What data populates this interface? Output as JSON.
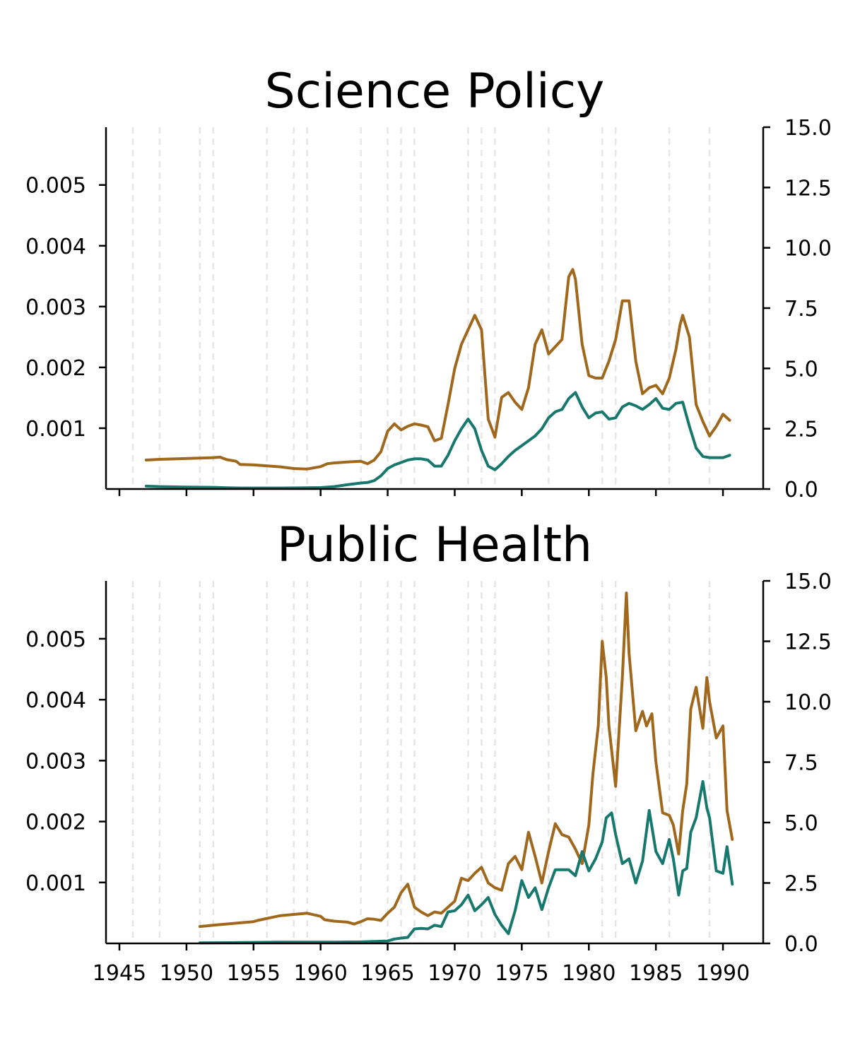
{
  "colors": {
    "brown": "#a0681c",
    "teal": "#17786e",
    "event_line": "#e6e6e6",
    "axis": "#000000"
  },
  "chart_data": [
    {
      "type": "line",
      "title": "Science Policy",
      "xlim": [
        1944,
        1993
      ],
      "x_ticks": [
        1945,
        1950,
        1955,
        1960,
        1965,
        1970,
        1975,
        1980,
        1985,
        1990
      ],
      "x_tick_labels_visible": false,
      "ylim_left": [
        0.0,
        0.00595
      ],
      "y_ticks_left": [
        "0.001",
        "0.002",
        "0.003",
        "0.004",
        "0.005"
      ],
      "ylim_right": [
        0.0,
        15.0
      ],
      "y_ticks_right": [
        "0.0",
        "2.5",
        "5.0",
        "7.5",
        "10.0",
        "12.5",
        "15.0"
      ],
      "event_lines": [
        1946,
        1948,
        1951,
        1952,
        1956,
        1958,
        1959,
        1963,
        1965,
        1966,
        1967,
        1971,
        1972,
        1973,
        1977,
        1981,
        1982,
        1986,
        1989
      ],
      "grid": false,
      "legend": "none",
      "series": [
        {
          "axis": "right",
          "color": "#a0681c",
          "x": [
            1947,
            1948,
            1952,
            1952.5,
            1953,
            1953.7,
            1954,
            1955,
            1957,
            1958,
            1959,
            1960,
            1960.5,
            1961,
            1962,
            1963,
            1963.5,
            1964,
            1964.5,
            1965,
            1965.5,
            1966,
            1966.5,
            1967,
            1967.5,
            1968,
            1968.5,
            1969,
            1969.5,
            1970,
            1970.5,
            1971,
            1971.5,
            1972,
            1972.5,
            1973,
            1973.5,
            1974,
            1974.5,
            1975,
            1975.5,
            1976,
            1976.5,
            1977,
            1977.5,
            1978,
            1978.5,
            1978.8,
            1979,
            1979.5,
            1980,
            1980.5,
            1981,
            1981.5,
            1982,
            1982.5,
            1983,
            1983.5,
            1984,
            1984.5,
            1985,
            1985.5,
            1986,
            1986.5,
            1986.8,
            1987,
            1987.5,
            1988,
            1988.5,
            1989,
            1989.5,
            1990,
            1990.5
          ],
          "y": [
            1.2,
            1.23,
            1.3,
            1.32,
            1.22,
            1.15,
            1.02,
            1.0,
            0.92,
            0.85,
            0.83,
            0.93,
            1.05,
            1.08,
            1.12,
            1.15,
            1.05,
            1.2,
            1.55,
            2.4,
            2.7,
            2.45,
            2.6,
            2.7,
            2.65,
            2.58,
            2.0,
            2.1,
            3.5,
            5.0,
            6.0,
            6.6,
            7.2,
            6.6,
            2.9,
            2.15,
            3.8,
            4.0,
            3.6,
            3.3,
            4.2,
            6.0,
            6.6,
            5.6,
            5.9,
            6.2,
            8.8,
            9.1,
            8.7,
            6.0,
            4.7,
            4.6,
            4.6,
            5.3,
            6.2,
            7.8,
            7.8,
            5.3,
            3.95,
            4.2,
            4.3,
            3.95,
            4.6,
            5.8,
            6.8,
            7.2,
            6.3,
            3.5,
            2.8,
            2.2,
            2.6,
            3.1,
            2.85
          ]
        },
        {
          "axis": "right",
          "color": "#17786e",
          "x": [
            1947,
            1948,
            1950,
            1952,
            1953,
            1954,
            1955,
            1957,
            1959,
            1960,
            1961,
            1962,
            1963,
            1963.5,
            1964,
            1964.5,
            1965,
            1965.5,
            1966,
            1966.5,
            1967,
            1967.5,
            1968,
            1968.5,
            1969,
            1969.5,
            1970,
            1970.5,
            1971,
            1971.5,
            1972,
            1972.5,
            1973,
            1973.5,
            1974,
            1974.5,
            1975,
            1975.5,
            1976,
            1976.5,
            1977,
            1977.5,
            1978,
            1978.5,
            1979,
            1979.5,
            1980,
            1980.5,
            1981,
            1981.5,
            1982,
            1982.5,
            1983,
            1983.5,
            1984,
            1984.5,
            1985,
            1985.5,
            1986,
            1986.5,
            1987,
            1987.5,
            1988,
            1988.5,
            1989,
            1989.5,
            1990,
            1990.5
          ],
          "y": [
            0.12,
            0.1,
            0.08,
            0.07,
            0.05,
            0.04,
            0.04,
            0.04,
            0.05,
            0.06,
            0.1,
            0.18,
            0.25,
            0.27,
            0.35,
            0.55,
            0.85,
            1.0,
            1.1,
            1.2,
            1.25,
            1.25,
            1.2,
            0.95,
            0.95,
            1.4,
            2.0,
            2.5,
            2.9,
            2.5,
            1.6,
            0.95,
            0.8,
            1.05,
            1.35,
            1.6,
            1.8,
            2.0,
            2.2,
            2.5,
            2.95,
            3.2,
            3.3,
            3.75,
            4.0,
            3.4,
            2.95,
            3.15,
            3.2,
            2.9,
            2.95,
            3.4,
            3.55,
            3.45,
            3.3,
            3.5,
            3.75,
            3.35,
            3.3,
            3.55,
            3.6,
            2.6,
            1.7,
            1.35,
            1.3,
            1.3,
            1.3,
            1.4
          ]
        }
      ]
    },
    {
      "type": "line",
      "title": "Public Health",
      "xlim": [
        1944,
        1993
      ],
      "x_ticks": [
        1945,
        1950,
        1955,
        1960,
        1965,
        1970,
        1975,
        1980,
        1985,
        1990
      ],
      "x_tick_labels": [
        "1945",
        "1950",
        "1955",
        "1960",
        "1965",
        "1970",
        "1975",
        "1980",
        "1985",
        "1990"
      ],
      "ylim_left": [
        0.0,
        0.00595
      ],
      "y_ticks_left": [
        "0.001",
        "0.002",
        "0.003",
        "0.004",
        "0.005"
      ],
      "ylim_right": [
        0.0,
        15.0
      ],
      "y_ticks_right": [
        "0.0",
        "2.5",
        "5.0",
        "7.5",
        "10.0",
        "12.5",
        "15.0"
      ],
      "event_lines": [
        1946,
        1948,
        1951,
        1952,
        1956,
        1958,
        1959,
        1963,
        1965,
        1966,
        1967,
        1971,
        1972,
        1973,
        1977,
        1981,
        1982,
        1986,
        1989
      ],
      "grid": false,
      "legend": "none",
      "series": [
        {
          "axis": "right",
          "color": "#a0681c",
          "x": [
            1951,
            1952,
            1954,
            1955,
            1955.3,
            1957,
            1959,
            1960,
            1960.3,
            1961,
            1962,
            1962.5,
            1963,
            1963.5,
            1964,
            1964.5,
            1965,
            1965.5,
            1966,
            1966.5,
            1967,
            1967.5,
            1968,
            1968.5,
            1969,
            1969.5,
            1970,
            1970.5,
            1971,
            1971.5,
            1972,
            1972.5,
            1973,
            1973.5,
            1974,
            1974.5,
            1975,
            1975.5,
            1976,
            1976.5,
            1977,
            1977.5,
            1978,
            1978.5,
            1979,
            1979.5,
            1980,
            1980.3,
            1980.7,
            1981,
            1981.3,
            1981.5,
            1982,
            1982.5,
            1982.8,
            1983,
            1983.5,
            1984,
            1984.3,
            1984.7,
            1985,
            1985.5,
            1986,
            1986.3,
            1986.7,
            1987,
            1987.3,
            1987.6,
            1988,
            1988.5,
            1988.8,
            1989,
            1989.5,
            1990,
            1990.3,
            1990.7
          ],
          "y": [
            0.7,
            0.75,
            0.85,
            0.9,
            0.95,
            1.15,
            1.25,
            1.12,
            0.98,
            0.92,
            0.88,
            0.8,
            0.9,
            1.02,
            1.0,
            0.95,
            1.25,
            1.5,
            2.1,
            2.45,
            1.5,
            1.3,
            1.15,
            1.3,
            1.25,
            1.5,
            1.75,
            2.7,
            2.6,
            2.9,
            3.15,
            2.5,
            2.3,
            2.2,
            3.3,
            3.6,
            3.05,
            4.6,
            3.6,
            2.5,
            3.8,
            4.95,
            4.5,
            4.4,
            3.9,
            3.3,
            4.9,
            7.0,
            9.0,
            12.5,
            11.0,
            9.0,
            6.5,
            11.0,
            14.5,
            12.0,
            8.8,
            9.6,
            9.0,
            9.5,
            7.5,
            5.4,
            5.3,
            4.9,
            3.7,
            5.5,
            6.6,
            9.7,
            10.6,
            8.9,
            11.0,
            10.0,
            8.5,
            9.0,
            5.5,
            4.3
          ]
        },
        {
          "axis": "right",
          "color": "#17786e",
          "x": [
            1951,
            1953,
            1955,
            1957,
            1959,
            1961,
            1963,
            1964,
            1965,
            1965.5,
            1966,
            1966.5,
            1967,
            1967.5,
            1968,
            1968.5,
            1969,
            1969.5,
            1970,
            1970.5,
            1971,
            1971.5,
            1972,
            1972.5,
            1973,
            1973.5,
            1974,
            1974.5,
            1975,
            1975.5,
            1976,
            1976.5,
            1977,
            1977.5,
            1978,
            1978.5,
            1979,
            1979.5,
            1980,
            1980.5,
            1981,
            1981.3,
            1981.7,
            1982,
            1982.5,
            1983,
            1983.5,
            1984,
            1984.5,
            1985,
            1985.5,
            1986,
            1986.3,
            1986.7,
            1987,
            1987.3,
            1987.6,
            1988,
            1988.5,
            1988.8,
            1989,
            1989.5,
            1990,
            1990.3,
            1990.7
          ],
          "y": [
            0.02,
            0.03,
            0.04,
            0.05,
            0.05,
            0.05,
            0.06,
            0.08,
            0.1,
            0.18,
            0.22,
            0.25,
            0.6,
            0.62,
            0.6,
            0.75,
            0.7,
            1.3,
            1.35,
            1.6,
            2.0,
            1.35,
            1.6,
            1.9,
            1.2,
            0.75,
            0.4,
            1.35,
            2.6,
            1.9,
            2.3,
            1.4,
            2.3,
            3.05,
            3.05,
            3.05,
            2.8,
            3.8,
            3.0,
            3.5,
            4.2,
            5.2,
            5.4,
            4.5,
            3.3,
            3.5,
            2.5,
            3.4,
            5.5,
            3.8,
            3.3,
            4.3,
            3.5,
            2.0,
            3.0,
            3.1,
            4.6,
            5.2,
            6.7,
            5.6,
            5.2,
            3.0,
            2.9,
            4.0,
            2.45
          ]
        }
      ]
    }
  ]
}
